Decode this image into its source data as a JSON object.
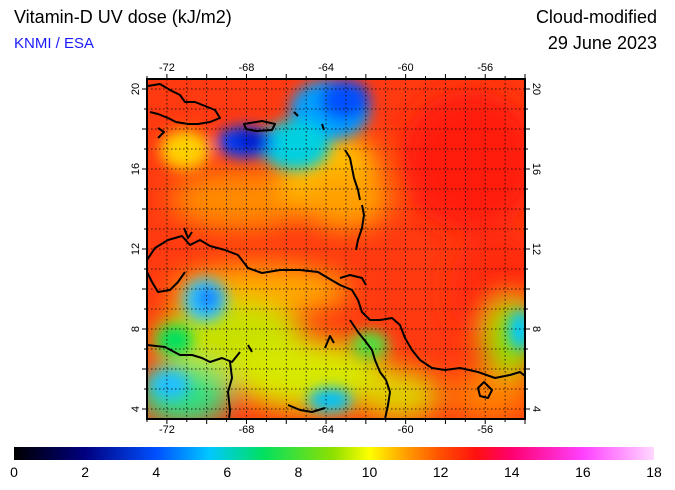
{
  "header": {
    "title": "Vitamin-D UV dose (kJ/m2)",
    "credit": "KNMI / ESA",
    "subtitle": "Cloud-modified",
    "date": "29 June 2023"
  },
  "map": {
    "lon_range": [
      -73,
      -54
    ],
    "lat_range": [
      3.5,
      20.5
    ],
    "lon_ticks": [
      -72,
      -68,
      -64,
      -60,
      -56
    ],
    "lat_ticks": [
      4,
      8,
      12,
      16,
      20
    ],
    "lon_tick_labels": [
      "-72",
      "-68",
      "-64",
      "-60",
      "-56"
    ],
    "lat_tick_labels": [
      "4",
      "8",
      "12",
      "16",
      "20"
    ],
    "grid": "dotted, 1 degree"
  },
  "colorbar": {
    "range": [
      0,
      18
    ],
    "tick_values": [
      0,
      2,
      4,
      6,
      8,
      10,
      12,
      14,
      16,
      18
    ],
    "tick_labels": [
      "0",
      "2",
      "4",
      "6",
      "8",
      "10",
      "12",
      "14",
      "16",
      "18"
    ],
    "stops": [
      {
        "value": 0,
        "color": "#000000"
      },
      {
        "value": 2,
        "color": "#000080"
      },
      {
        "value": 4,
        "color": "#0050ff"
      },
      {
        "value": 5.5,
        "color": "#00c8ff"
      },
      {
        "value": 7,
        "color": "#00e060"
      },
      {
        "value": 9,
        "color": "#90e000"
      },
      {
        "value": 10,
        "color": "#ffff00"
      },
      {
        "value": 11,
        "color": "#ffa000"
      },
      {
        "value": 12,
        "color": "#ff5000"
      },
      {
        "value": 13,
        "color": "#ff1010"
      },
      {
        "value": 14,
        "color": "#ff0070"
      },
      {
        "value": 16,
        "color": "#ff40ff"
      },
      {
        "value": 18,
        "color": "#ffd8ff"
      }
    ]
  },
  "colors": {
    "frame": "#000000",
    "coastline": "#000000"
  }
}
